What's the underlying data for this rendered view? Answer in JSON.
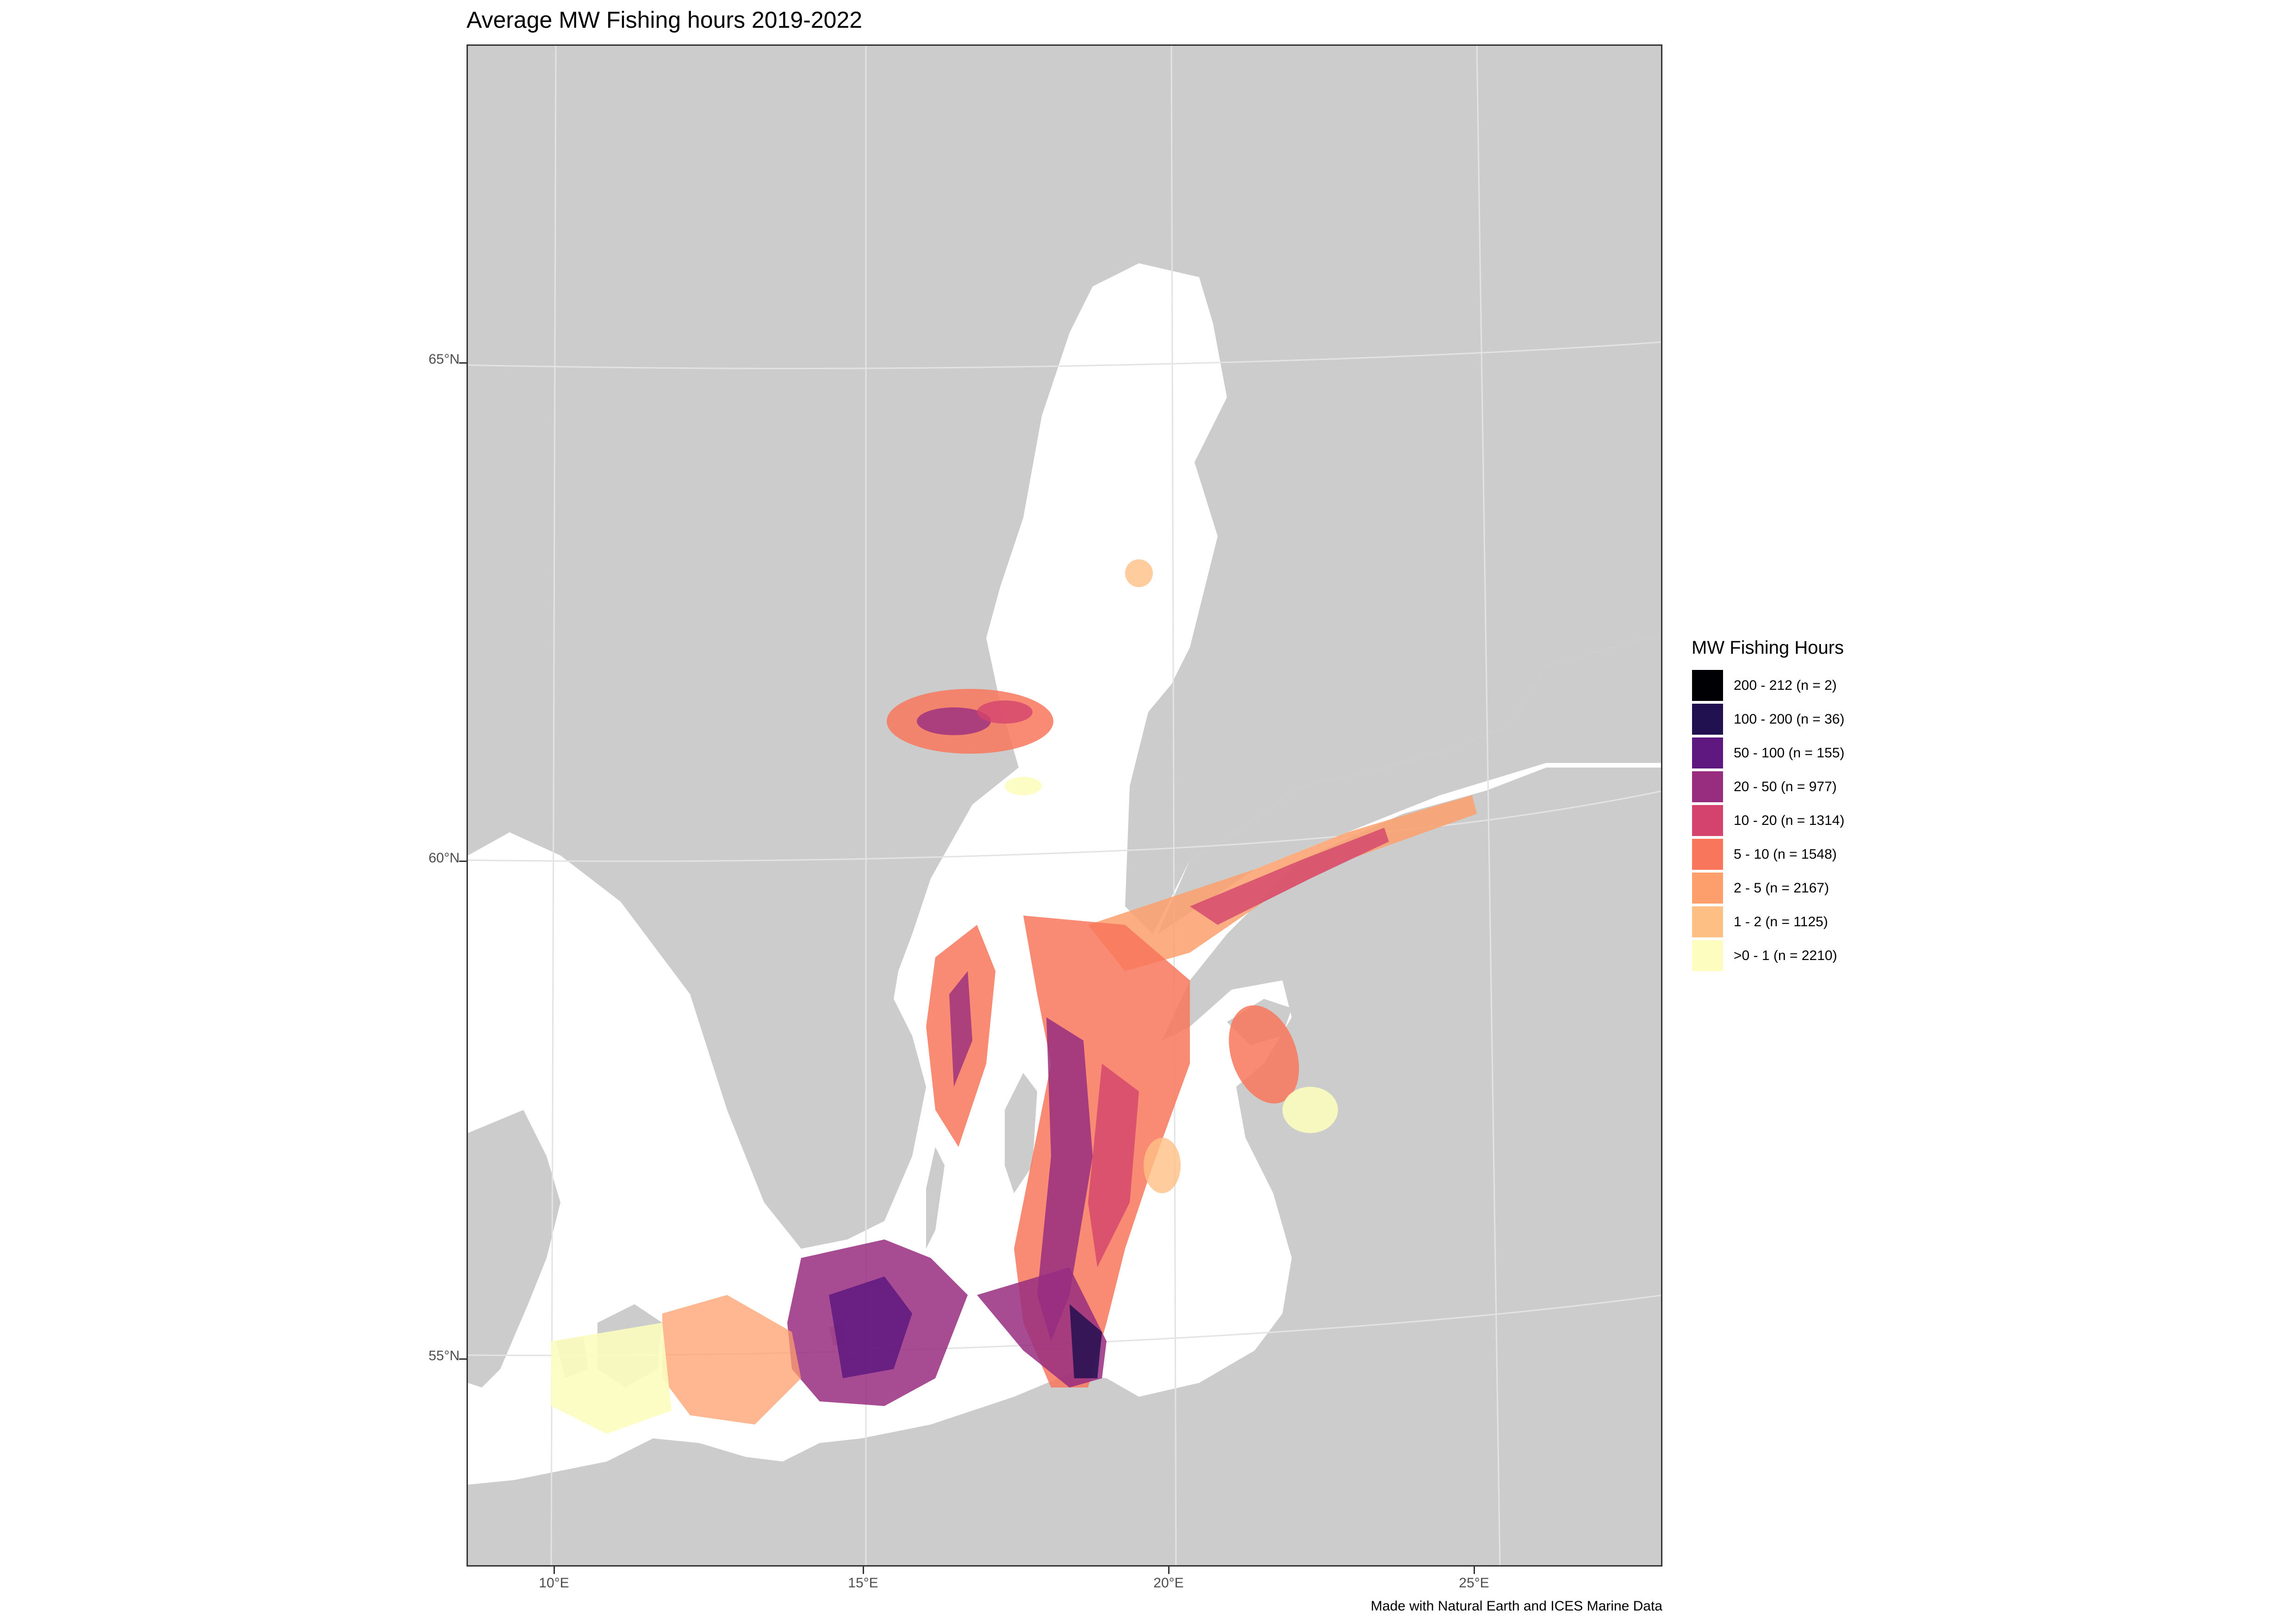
{
  "title": "Average MW Fishing hours 2019-2022",
  "axes": {
    "y_ticks": [
      "65°N",
      "60°N",
      "55°N"
    ],
    "x_ticks": [
      "10°E",
      "15°E",
      "20°E",
      "25°E"
    ]
  },
  "legend": {
    "title": "MW Fishing Hours",
    "items": [
      {
        "label": "200 - 212 (n = 2)",
        "color": "#000004"
      },
      {
        "label": "100 - 200 (n = 36)",
        "color": "#221150"
      },
      {
        "label": "50 - 100 (n = 155)",
        "color": "#5f187f"
      },
      {
        "label": "20 - 50 (n = 977)",
        "color": "#982d80"
      },
      {
        "label": "10 - 20 (n = 1314)",
        "color": "#d3436e"
      },
      {
        "label": "5 - 10 (n = 1548)",
        "color": "#f8765c"
      },
      {
        "label": "2 - 5 (n = 2167)",
        "color": "#fd9f6c"
      },
      {
        "label": "1 - 2 (n = 1125)",
        "color": "#febf84"
      },
      {
        "label": ">0 - 1 (n = 2210)",
        "color": "#fcfdbf"
      }
    ]
  },
  "caption": "Made with Natural Earth and ICES Marine Data",
  "colors": {
    "land": "#cccccc",
    "sea": "#ffffff",
    "graticule": "#e0e0e0"
  }
}
